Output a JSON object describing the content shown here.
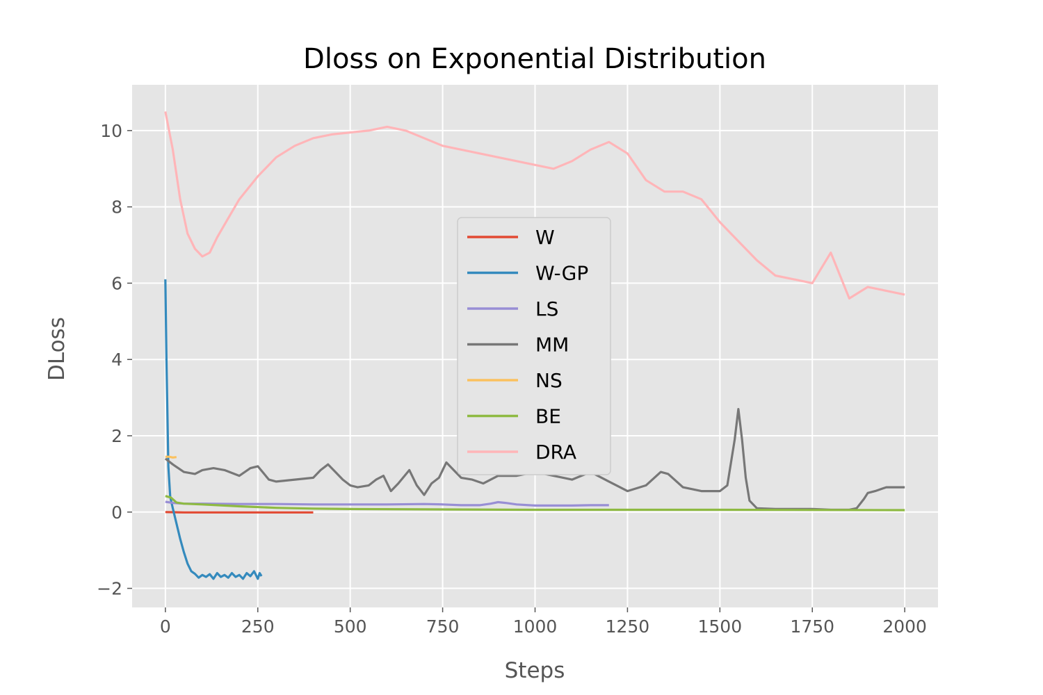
{
  "chart_data": {
    "type": "line",
    "title": "Dloss on Exponential Distribution",
    "xlabel": "Steps",
    "ylabel": "DLoss",
    "xlim": [
      -90,
      2090
    ],
    "ylim": [
      -2.5,
      11.2
    ],
    "xticks": [
      0,
      250,
      500,
      750,
      1000,
      1250,
      1500,
      1750,
      2000
    ],
    "xtick_labels": [
      "0",
      "250",
      "500",
      "750",
      "1000",
      "1250",
      "1500",
      "1750",
      "2000"
    ],
    "yticks": [
      -2,
      0,
      2,
      4,
      6,
      8,
      10
    ],
    "ytick_labels": [
      "−2",
      "0",
      "2",
      "4",
      "6",
      "8",
      "10"
    ],
    "grid": true,
    "legend_position": "center",
    "series": [
      {
        "name": "W",
        "color": "#E24A33",
        "x": [
          0,
          50,
          100,
          200,
          300,
          400
        ],
        "y": [
          0.0,
          -0.01,
          -0.01,
          -0.01,
          -0.01,
          -0.01
        ]
      },
      {
        "name": "W-GP",
        "color": "#348ABD",
        "x": [
          0,
          3,
          8,
          13,
          20,
          30,
          40,
          50,
          60,
          70,
          80,
          90,
          100,
          110,
          120,
          130,
          140,
          150,
          160,
          170,
          180,
          190,
          200,
          210,
          220,
          230,
          240,
          250,
          255,
          260
        ],
        "y": [
          6.1,
          4.0,
          1.2,
          0.4,
          0.1,
          -0.3,
          -0.7,
          -1.05,
          -1.35,
          -1.55,
          -1.62,
          -1.72,
          -1.65,
          -1.7,
          -1.63,
          -1.75,
          -1.6,
          -1.7,
          -1.65,
          -1.72,
          -1.6,
          -1.7,
          -1.65,
          -1.75,
          -1.6,
          -1.68,
          -1.55,
          -1.75,
          -1.6,
          -1.68
        ]
      },
      {
        "name": "LS",
        "color": "#988ED5",
        "x": [
          0,
          20,
          50,
          100,
          200,
          300,
          400,
          500,
          600,
          700,
          750,
          800,
          850,
          880,
          900,
          920,
          950,
          1000,
          1050,
          1100,
          1150,
          1200
        ],
        "y": [
          0.27,
          0.24,
          0.22,
          0.22,
          0.21,
          0.21,
          0.2,
          0.2,
          0.2,
          0.21,
          0.2,
          0.18,
          0.18,
          0.22,
          0.26,
          0.24,
          0.2,
          0.17,
          0.17,
          0.17,
          0.18,
          0.18
        ]
      },
      {
        "name": "MM",
        "color": "#777777",
        "x": [
          0,
          20,
          50,
          80,
          100,
          130,
          160,
          200,
          230,
          250,
          280,
          300,
          350,
          400,
          420,
          440,
          460,
          480,
          500,
          520,
          550,
          570,
          590,
          610,
          630,
          660,
          680,
          700,
          720,
          740,
          760,
          780,
          800,
          830,
          860,
          900,
          950,
          1000,
          1050,
          1100,
          1150,
          1200,
          1250,
          1300,
          1340,
          1360,
          1400,
          1450,
          1500,
          1520,
          1540,
          1550,
          1560,
          1570,
          1580,
          1600,
          1650,
          1700,
          1750,
          1800,
          1850,
          1870,
          1890,
          1900,
          1920,
          1950,
          2000
        ],
        "y": [
          1.4,
          1.25,
          1.05,
          1.0,
          1.1,
          1.15,
          1.1,
          0.95,
          1.15,
          1.2,
          0.85,
          0.8,
          0.85,
          0.9,
          1.1,
          1.25,
          1.05,
          0.85,
          0.7,
          0.65,
          0.7,
          0.85,
          0.95,
          0.55,
          0.75,
          1.1,
          0.7,
          0.45,
          0.75,
          0.9,
          1.3,
          1.1,
          0.9,
          0.85,
          0.75,
          0.95,
          0.95,
          1.05,
          0.95,
          0.85,
          1.05,
          0.8,
          0.55,
          0.7,
          1.05,
          1.0,
          0.65,
          0.55,
          0.55,
          0.7,
          1.9,
          2.7,
          1.9,
          0.9,
          0.3,
          0.1,
          0.08,
          0.08,
          0.08,
          0.06,
          0.06,
          0.1,
          0.35,
          0.5,
          0.55,
          0.65,
          0.65
        ]
      },
      {
        "name": "NS",
        "color": "#FBC15E",
        "x": [
          0,
          10,
          20,
          30
        ],
        "y": [
          1.45,
          1.45,
          1.43,
          1.44
        ]
      },
      {
        "name": "BE",
        "color": "#8EBA42",
        "x": [
          0,
          15,
          30,
          50,
          100,
          200,
          300,
          400,
          500,
          700,
          1000,
          1500,
          2000
        ],
        "y": [
          0.42,
          0.38,
          0.25,
          0.22,
          0.2,
          0.15,
          0.11,
          0.09,
          0.08,
          0.07,
          0.06,
          0.06,
          0.05
        ]
      },
      {
        "name": "DRA",
        "color": "#FFB5B8",
        "x": [
          0,
          20,
          40,
          60,
          80,
          100,
          120,
          140,
          170,
          200,
          250,
          300,
          350,
          400,
          450,
          500,
          550,
          600,
          650,
          700,
          750,
          800,
          850,
          900,
          950,
          1000,
          1050,
          1100,
          1150,
          1200,
          1250,
          1300,
          1350,
          1400,
          1450,
          1500,
          1550,
          1600,
          1650,
          1700,
          1750,
          1800,
          1850,
          1900,
          1950,
          2000
        ],
        "y": [
          10.5,
          9.5,
          8.2,
          7.3,
          6.9,
          6.7,
          6.8,
          7.2,
          7.7,
          8.2,
          8.8,
          9.3,
          9.6,
          9.8,
          9.9,
          9.95,
          10.0,
          10.1,
          10.0,
          9.8,
          9.6,
          9.5,
          9.4,
          9.3,
          9.2,
          9.1,
          9.0,
          9.2,
          9.5,
          9.7,
          9.4,
          8.7,
          8.4,
          8.4,
          8.2,
          7.6,
          7.1,
          6.6,
          6.2,
          6.1,
          6.0,
          6.8,
          5.6,
          5.9,
          5.8,
          5.7
        ]
      }
    ]
  }
}
